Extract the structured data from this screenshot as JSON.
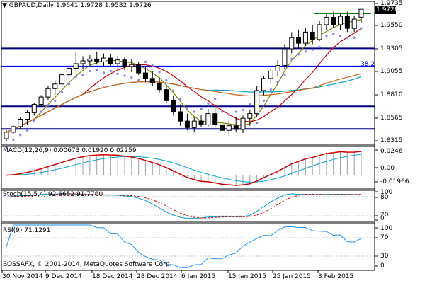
{
  "main": {
    "symbol": "GBPAUD,Daily",
    "o": "1.9641",
    "h": "1.9728",
    "l": "1.9582",
    "c": "1.9726",
    "price_ticks": [
      "1.9735",
      "1.9550",
      "1.9305",
      "1.9055",
      "1.8810",
      "1.8565",
      "1.8315"
    ],
    "current_price": "1.9726",
    "fibo_label": "38.2",
    "time_labels": [
      "30 Nov 2014",
      "9 Dec 2014",
      "18 Dec 2014",
      "28 Dec 2014",
      "6 Jan 2015",
      "15 Jan 2015",
      "25 Jan 2015",
      "3 Feb 2015"
    ]
  },
  "macd": {
    "label": "MACD(12,26,9) 0.00673 0.01920 0.02259",
    "ticks": [
      "0.0246",
      "0.00",
      "-0.01966"
    ]
  },
  "stoch": {
    "label": "Stoch(15,5,4) 92.6652 91.7760",
    "ticks": [
      "100",
      "80",
      "20",
      "0"
    ]
  },
  "rsi": {
    "label": "RSI(9) 71.1291",
    "ticks": [
      "100",
      "70",
      "30",
      "0"
    ]
  },
  "copyright": "BOSSAFX, © 2001-2014, MetaQuotes Software Corp.",
  "colors": {
    "bg": "#ffffff",
    "hlines": "#000080",
    "ma_fast": "#808000",
    "ma_mid": "#cc0000",
    "ma_slow": "#00a0c0",
    "ma_long": "#d06010",
    "psar": "#8080ff",
    "macd_line": "#00a0d0",
    "macd_signal": "#cc0000",
    "stoch_main": "#00a0d0",
    "stoch_signal": "#cc0000",
    "rsi_line": "#1e90ff",
    "resistance": "#008000"
  },
  "chart_data": {
    "type": "candlestick",
    "series": [
      {
        "name": "GBPAUD,Daily",
        "ohlc_last": [
          1.9641,
          1.9728,
          1.9582,
          1.9726
        ]
      }
    ],
    "ylim": [
      1.8315,
      1.9735
    ],
    "horizontal_levels": [
      1.9305,
      1.911,
      1.868,
      1.8435
    ],
    "fibo_level": {
      "label": "38.2",
      "value": 1.911
    },
    "candles": [
      [
        1.833,
        1.842,
        1.83,
        1.84
      ],
      [
        1.84,
        1.848,
        1.838,
        1.846
      ],
      [
        1.846,
        1.856,
        1.843,
        1.854
      ],
      [
        1.854,
        1.864,
        1.848,
        1.861
      ],
      [
        1.861,
        1.872,
        1.858,
        1.87
      ],
      [
        1.87,
        1.88,
        1.868,
        1.878
      ],
      [
        1.878,
        1.89,
        1.875,
        1.887
      ],
      [
        1.887,
        1.896,
        1.88,
        1.892
      ],
      [
        1.892,
        1.905,
        1.889,
        1.902
      ],
      [
        1.902,
        1.912,
        1.898,
        1.909
      ],
      [
        1.909,
        1.926,
        1.906,
        1.914
      ],
      [
        1.914,
        1.922,
        1.908,
        1.917
      ],
      [
        1.917,
        1.923,
        1.912,
        1.919
      ],
      [
        1.919,
        1.927,
        1.913,
        1.916
      ],
      [
        1.916,
        1.925,
        1.91,
        1.92
      ],
      [
        1.92,
        1.924,
        1.912,
        1.914
      ],
      [
        1.914,
        1.922,
        1.909,
        1.918
      ],
      [
        1.918,
        1.921,
        1.907,
        1.911
      ],
      [
        1.911,
        1.919,
        1.905,
        1.913
      ],
      [
        1.913,
        1.916,
        1.902,
        1.904
      ],
      [
        1.904,
        1.91,
        1.894,
        1.898
      ],
      [
        1.898,
        1.906,
        1.89,
        1.893
      ],
      [
        1.893,
        1.899,
        1.883,
        1.886
      ],
      [
        1.886,
        1.89,
        1.871,
        1.874
      ],
      [
        1.874,
        1.879,
        1.858,
        1.862
      ],
      [
        1.862,
        1.87,
        1.847,
        1.852
      ],
      [
        1.852,
        1.86,
        1.842,
        1.845
      ],
      [
        1.845,
        1.856,
        1.84,
        1.852
      ],
      [
        1.852,
        1.859,
        1.846,
        1.848
      ],
      [
        1.848,
        1.865,
        1.846,
        1.86
      ],
      [
        1.86,
        1.87,
        1.845,
        1.848
      ],
      [
        1.848,
        1.856,
        1.838,
        1.842
      ],
      [
        1.842,
        1.853,
        1.836,
        1.847
      ],
      [
        1.847,
        1.856,
        1.84,
        1.843
      ],
      [
        1.843,
        1.858,
        1.839,
        1.855
      ],
      [
        1.855,
        1.864,
        1.847,
        1.86
      ],
      [
        1.86,
        1.89,
        1.856,
        1.885
      ],
      [
        1.885,
        1.901,
        1.88,
        1.898
      ],
      [
        1.898,
        1.908,
        1.892,
        1.906
      ],
      [
        1.906,
        1.918,
        1.9,
        1.912
      ],
      [
        1.912,
        1.935,
        1.908,
        1.93
      ],
      [
        1.93,
        1.948,
        1.925,
        1.942
      ],
      [
        1.942,
        1.95,
        1.93,
        1.936
      ],
      [
        1.936,
        1.952,
        1.933,
        1.948
      ],
      [
        1.948,
        1.956,
        1.935,
        1.94
      ],
      [
        1.94,
        1.96,
        1.938,
        1.956
      ],
      [
        1.956,
        1.968,
        1.95,
        1.964
      ],
      [
        1.964,
        1.97,
        1.952,
        1.956
      ],
      [
        1.956,
        1.969,
        1.95,
        1.965
      ],
      [
        1.965,
        1.97,
        1.948,
        1.952
      ],
      [
        1.952,
        1.966,
        1.948,
        1.962
      ],
      [
        1.9641,
        1.9728,
        1.9582,
        1.9726
      ]
    ]
  }
}
